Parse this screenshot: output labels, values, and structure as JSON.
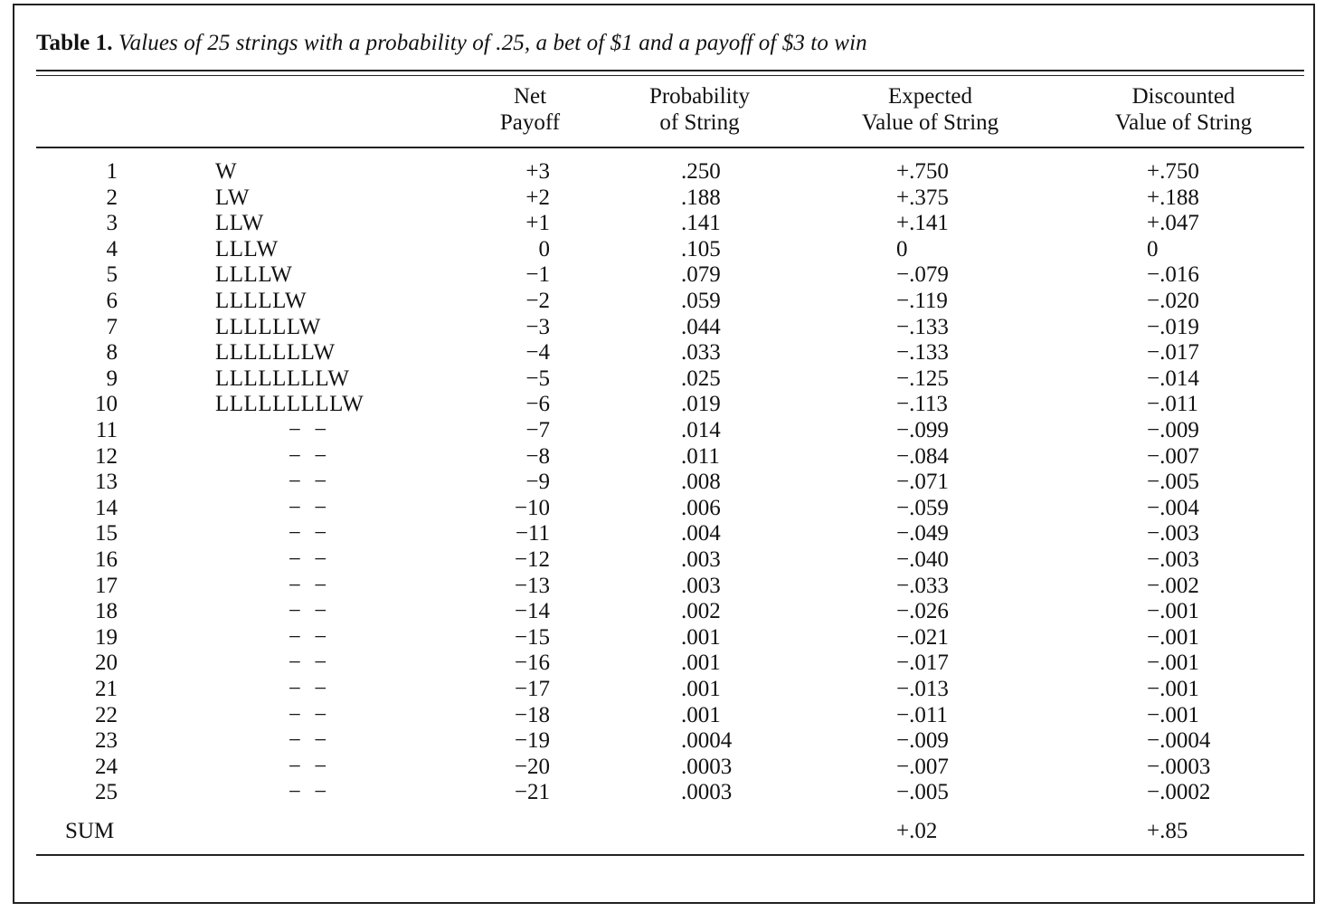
{
  "table": {
    "caption_label": "Table 1.",
    "caption_text": "Values of 25 strings with a probability of .25, a bet of $1 and a payoff of $3 to win",
    "headers": [
      {
        "line1": "Net",
        "line2": "Payoff"
      },
      {
        "line1": "Probability",
        "line2": "of String"
      },
      {
        "line1": "Expected",
        "line2": "Value of String"
      },
      {
        "line1": "Discounted",
        "line2": "Value of String"
      }
    ],
    "rows": [
      {
        "n": "1",
        "string": "W",
        "payoff": "+3",
        "prob": ".250",
        "expected": "+.750",
        "discounted": "+.750"
      },
      {
        "n": "2",
        "string": "LW",
        "payoff": "+2",
        "prob": ".188",
        "expected": "+.375",
        "discounted": "+.188"
      },
      {
        "n": "3",
        "string": "LLW",
        "payoff": "+1",
        "prob": ".141",
        "expected": "+.141",
        "discounted": "+.047"
      },
      {
        "n": "4",
        "string": "LLLW",
        "payoff": "0",
        "prob": ".105",
        "expected": "0",
        "discounted": "0"
      },
      {
        "n": "5",
        "string": "LLLLW",
        "payoff": "−1",
        "prob": ".079",
        "expected": "−.079",
        "discounted": "−.016"
      },
      {
        "n": "6",
        "string": "LLLLLW",
        "payoff": "−2",
        "prob": ".059",
        "expected": "−.119",
        "discounted": "−.020"
      },
      {
        "n": "7",
        "string": "LLLLLLW",
        "payoff": "−3",
        "prob": ".044",
        "expected": "−.133",
        "discounted": "−.019"
      },
      {
        "n": "8",
        "string": "LLLLLLLW",
        "payoff": "−4",
        "prob": ".033",
        "expected": "−.133",
        "discounted": "−.017"
      },
      {
        "n": "9",
        "string": "LLLLLLLLW",
        "payoff": "−5",
        "prob": ".025",
        "expected": "−.125",
        "discounted": "−.014"
      },
      {
        "n": "10",
        "string": "LLLLLLLLLW",
        "payoff": "−6",
        "prob": ".019",
        "expected": "−.113",
        "discounted": "−.011"
      },
      {
        "n": "11",
        "string": "− −",
        "payoff": "−7",
        "prob": ".014",
        "expected": "−.099",
        "discounted": "−.009"
      },
      {
        "n": "12",
        "string": "− −",
        "payoff": "−8",
        "prob": ".011",
        "expected": "−.084",
        "discounted": "−.007"
      },
      {
        "n": "13",
        "string": "− −",
        "payoff": "−9",
        "prob": ".008",
        "expected": "−.071",
        "discounted": "−.005"
      },
      {
        "n": "14",
        "string": "− −",
        "payoff": "−10",
        "prob": ".006",
        "expected": "−.059",
        "discounted": "−.004"
      },
      {
        "n": "15",
        "string": "− −",
        "payoff": "−11",
        "prob": ".004",
        "expected": "−.049",
        "discounted": "−.003"
      },
      {
        "n": "16",
        "string": "− −",
        "payoff": "−12",
        "prob": ".003",
        "expected": "−.040",
        "discounted": "−.003"
      },
      {
        "n": "17",
        "string": "− −",
        "payoff": "−13",
        "prob": ".003",
        "expected": "−.033",
        "discounted": "−.002"
      },
      {
        "n": "18",
        "string": "− −",
        "payoff": "−14",
        "prob": ".002",
        "expected": "−.026",
        "discounted": "−.001"
      },
      {
        "n": "19",
        "string": "− −",
        "payoff": "−15",
        "prob": ".001",
        "expected": "−.021",
        "discounted": "−.001"
      },
      {
        "n": "20",
        "string": "− −",
        "payoff": "−16",
        "prob": ".001",
        "expected": "−.017",
        "discounted": "−.001"
      },
      {
        "n": "21",
        "string": "− −",
        "payoff": "−17",
        "prob": ".001",
        "expected": "−.013",
        "discounted": "−.001"
      },
      {
        "n": "22",
        "string": "− −",
        "payoff": "−18",
        "prob": ".001",
        "expected": "−.011",
        "discounted": "−.001"
      },
      {
        "n": "23",
        "string": "− −",
        "payoff": "−19",
        "prob": ".0004",
        "expected": "−.009",
        "discounted": "−.0004"
      },
      {
        "n": "24",
        "string": "− −",
        "payoff": "−20",
        "prob": ".0003",
        "expected": "−.007",
        "discounted": "−.0003"
      },
      {
        "n": "25",
        "string": "− −",
        "payoff": "−21",
        "prob": ".0003",
        "expected": "−.005",
        "discounted": "−.0002"
      }
    ],
    "sum": {
      "label": "SUM",
      "expected": "+.02",
      "discounted": "+.85"
    }
  }
}
